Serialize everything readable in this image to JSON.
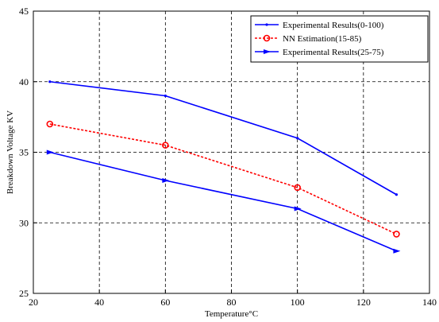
{
  "chart_data": {
    "type": "line",
    "xlabel": "Temperature°C",
    "ylabel": "Breakdown Voltage KV",
    "xlim": [
      20,
      140
    ],
    "ylim": [
      25,
      45
    ],
    "xticks": [
      20,
      40,
      60,
      80,
      100,
      120,
      140
    ],
    "yticks": [
      25,
      30,
      35,
      40,
      45
    ],
    "xtick_labels": [
      "20",
      "40",
      "60",
      "80",
      "100",
      "120",
      "140"
    ],
    "ytick_labels": [
      "25",
      "30",
      "35",
      "40",
      "45"
    ],
    "grid": true,
    "legend_position": "top-right",
    "series": [
      {
        "name": "Experimental Results(0-100)",
        "color": "#0000ff",
        "line_style": "solid",
        "marker": "point",
        "x": [
          25,
          60,
          100,
          130
        ],
        "y": [
          40,
          39,
          36,
          32
        ]
      },
      {
        "name": "NN Estimation(15-85)",
        "color": "#ff0000",
        "line_style": "dashed",
        "marker": "circle",
        "x": [
          25,
          60,
          100,
          130
        ],
        "y": [
          37,
          35.5,
          32.5,
          29.2
        ]
      },
      {
        "name": "Experimental Results(25-75)",
        "color": "#0000ff",
        "line_style": "solid",
        "marker": "star",
        "x": [
          25,
          60,
          100,
          130
        ],
        "y": [
          35,
          33,
          31,
          28
        ]
      }
    ]
  }
}
